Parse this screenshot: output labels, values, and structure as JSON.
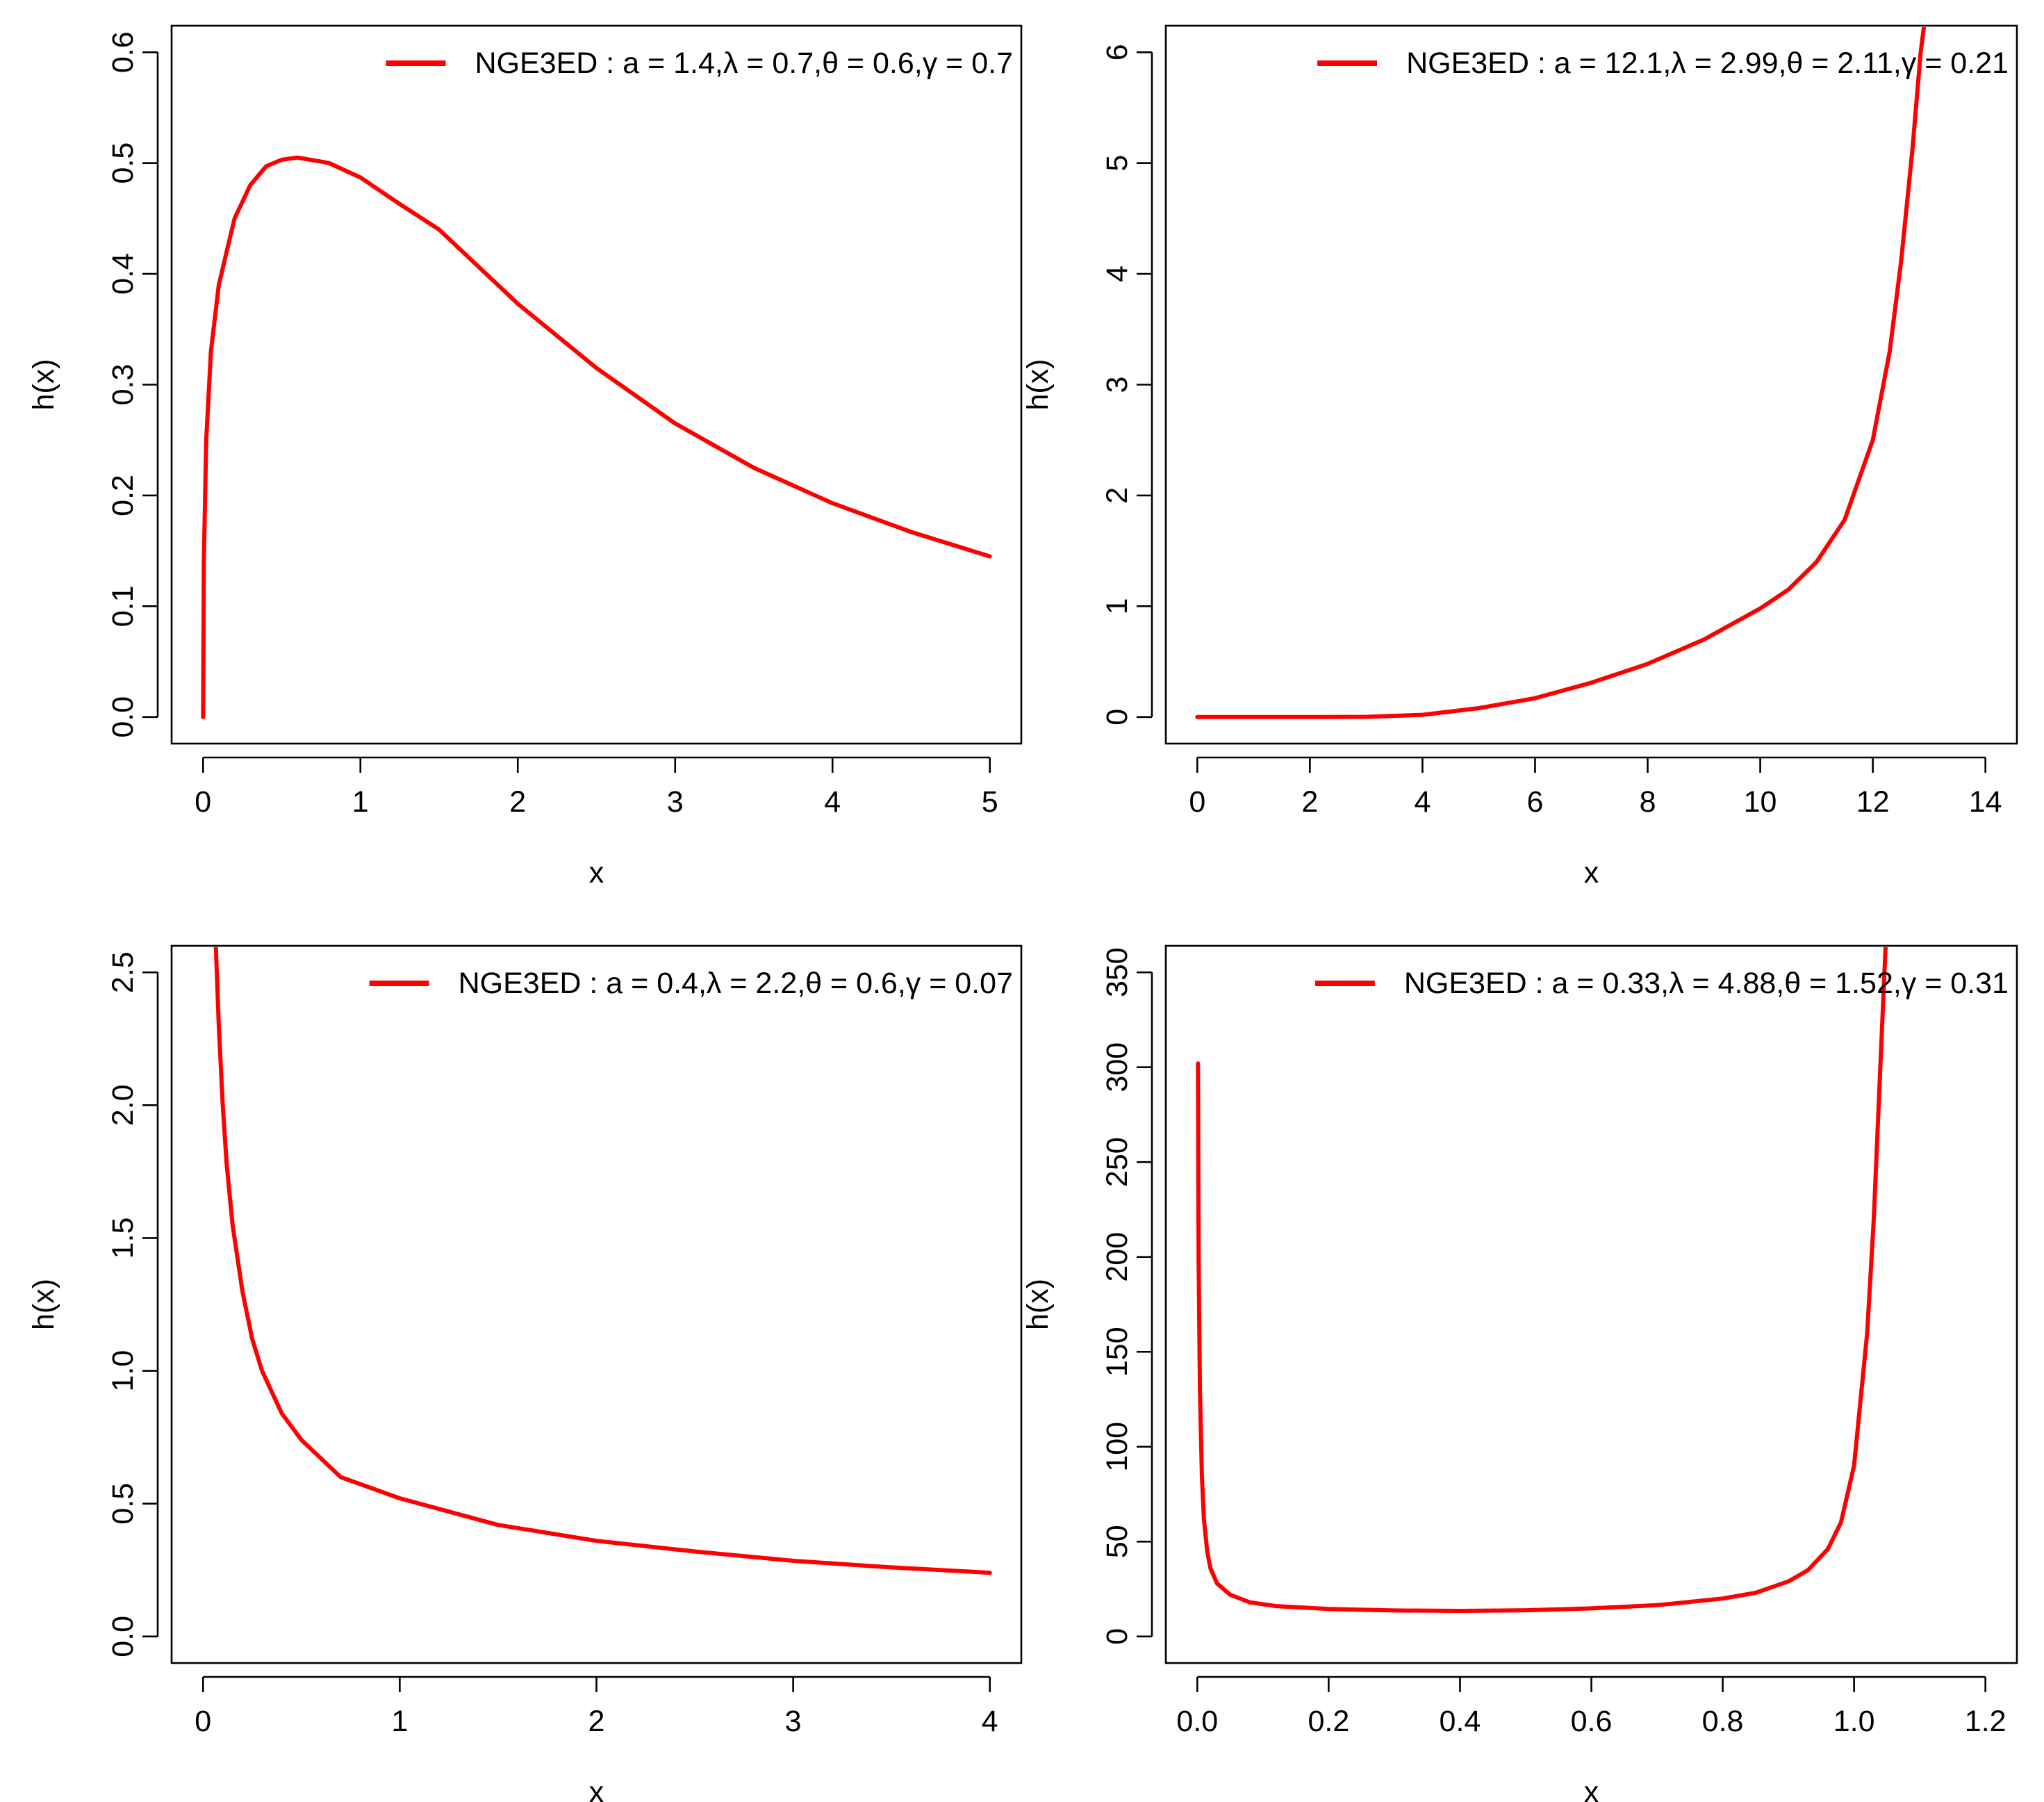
{
  "figure": {
    "panels": [
      {
        "chart_data": {
          "type": "line",
          "xlabel": "x",
          "ylabel": "h(x)",
          "xlim": [
            0,
            5
          ],
          "ylim": [
            0,
            0.6
          ],
          "xticks": [
            0,
            1,
            2,
            3,
            4,
            5
          ],
          "yticks": [
            0.0,
            0.1,
            0.2,
            0.3,
            0.4,
            0.5,
            0.6
          ],
          "xtick_labels": [
            "0",
            "1",
            "2",
            "3",
            "4",
            "5"
          ],
          "ytick_labels": [
            "0.0",
            "0.1",
            "0.2",
            "0.3",
            "0.4",
            "0.5",
            "0.6"
          ],
          "legend_position": "top-right",
          "series": [
            {
              "name": "NGE3ED : a = 1.4,λ = 0.7,θ = 0.6,γ = 0.7",
              "color": "#ff0000",
              "x": [
                0,
                0.005,
                0.02,
                0.05,
                0.1,
                0.2,
                0.3,
                0.4,
                0.5,
                0.6,
                0.8,
                1.0,
                1.25,
                1.5,
                2.0,
                2.5,
                3.0,
                3.5,
                4.0,
                4.5,
                5.0
              ],
              "y": [
                0,
                0.14,
                0.25,
                0.33,
                0.39,
                0.45,
                0.48,
                0.497,
                0.503,
                0.505,
                0.5,
                0.487,
                0.463,
                0.44,
                0.373,
                0.315,
                0.265,
                0.225,
                0.193,
                0.167,
                0.145
              ]
            }
          ]
        }
      },
      {
        "chart_data": {
          "type": "line",
          "xlabel": "x",
          "ylabel": "h(x)",
          "xlim": [
            0,
            14
          ],
          "ylim": [
            0,
            6
          ],
          "xticks": [
            0,
            2,
            4,
            6,
            8,
            10,
            12,
            14
          ],
          "yticks": [
            0,
            1,
            2,
            3,
            4,
            5,
            6
          ],
          "xtick_labels": [
            "0",
            "2",
            "4",
            "6",
            "8",
            "10",
            "12",
            "14"
          ],
          "ytick_labels": [
            "0",
            "1",
            "2",
            "3",
            "4",
            "5",
            "6"
          ],
          "legend_position": "top-right",
          "series": [
            {
              "name": "NGE3ED : a = 12.1,λ = 2.99,θ = 2.11,γ = 0.21",
              "color": "#ff0000",
              "x": [
                0,
                1,
                2,
                3,
                4,
                5,
                6,
                7,
                8,
                9,
                10,
                10.5,
                11,
                11.5,
                12,
                12.3,
                12.5,
                12.7,
                12.85,
                12.95
              ],
              "y": [
                0,
                0,
                0,
                0.002,
                0.02,
                0.08,
                0.17,
                0.31,
                0.48,
                0.7,
                0.98,
                1.15,
                1.4,
                1.78,
                2.5,
                3.3,
                4.1,
                5.1,
                6.0,
                6.4
              ]
            }
          ]
        }
      },
      {
        "chart_data": {
          "type": "line",
          "xlabel": "x",
          "ylabel": "h(x)",
          "xlim": [
            0,
            4
          ],
          "ylim": [
            0,
            2.5
          ],
          "xticks": [
            0,
            1,
            2,
            3,
            4
          ],
          "yticks": [
            0.0,
            0.5,
            1.0,
            1.5,
            2.0,
            2.5
          ],
          "xtick_labels": [
            "0",
            "1",
            "2",
            "3",
            "4"
          ],
          "ytick_labels": [
            "0.0",
            "0.5",
            "1.0",
            "1.5",
            "2.0",
            "2.5"
          ],
          "legend_position": "top-right",
          "series": [
            {
              "name": "NGE3ED : a = 0.4,λ = 2.2,θ = 0.6,γ = 0.07",
              "color": "#ff0000",
              "x": [
                0.06,
                0.08,
                0.1,
                0.12,
                0.15,
                0.2,
                0.25,
                0.3,
                0.4,
                0.5,
                0.7,
                1.0,
                1.5,
                2.0,
                2.5,
                3.0,
                3.5,
                4.0
              ],
              "y": [
                2.7,
                2.3,
                2.0,
                1.78,
                1.55,
                1.3,
                1.12,
                1.0,
                0.84,
                0.74,
                0.6,
                0.52,
                0.42,
                0.36,
                0.32,
                0.285,
                0.26,
                0.24
              ]
            }
          ]
        }
      },
      {
        "chart_data": {
          "type": "line",
          "xlabel": "x",
          "ylabel": "h(x)",
          "xlim": [
            0,
            1.2
          ],
          "ylim": [
            0,
            350
          ],
          "xticks": [
            0.0,
            0.2,
            0.4,
            0.6,
            0.8,
            1.0,
            1.2
          ],
          "yticks": [
            0,
            50,
            100,
            150,
            200,
            250,
            300,
            350
          ],
          "xtick_labels": [
            "0.0",
            "0.2",
            "0.4",
            "0.6",
            "0.8",
            "1.0",
            "1.2"
          ],
          "ytick_labels": [
            "0",
            "50",
            "100",
            "150",
            "200",
            "250",
            "300",
            "350"
          ],
          "legend_position": "top-right",
          "series": [
            {
              "name": "NGE3ED : a = 0.33,λ = 4.88,θ = 1.52,γ = 0.31",
              "color": "#ff0000",
              "x": [
                0.001,
                0.002,
                0.004,
                0.007,
                0.01,
                0.015,
                0.02,
                0.03,
                0.05,
                0.08,
                0.12,
                0.2,
                0.3,
                0.4,
                0.5,
                0.6,
                0.7,
                0.8,
                0.85,
                0.9,
                0.93,
                0.96,
                0.98,
                1.0,
                1.02,
                1.03,
                1.04,
                1.05
              ],
              "y": [
                302,
                200,
                130,
                85,
                62,
                45,
                36,
                28,
                22,
                18,
                16,
                14.5,
                13.7,
                13.5,
                13.8,
                14.8,
                16.5,
                20,
                23,
                29,
                35,
                46,
                60,
                90,
                160,
                220,
                300,
                380
              ]
            }
          ]
        }
      }
    ]
  }
}
